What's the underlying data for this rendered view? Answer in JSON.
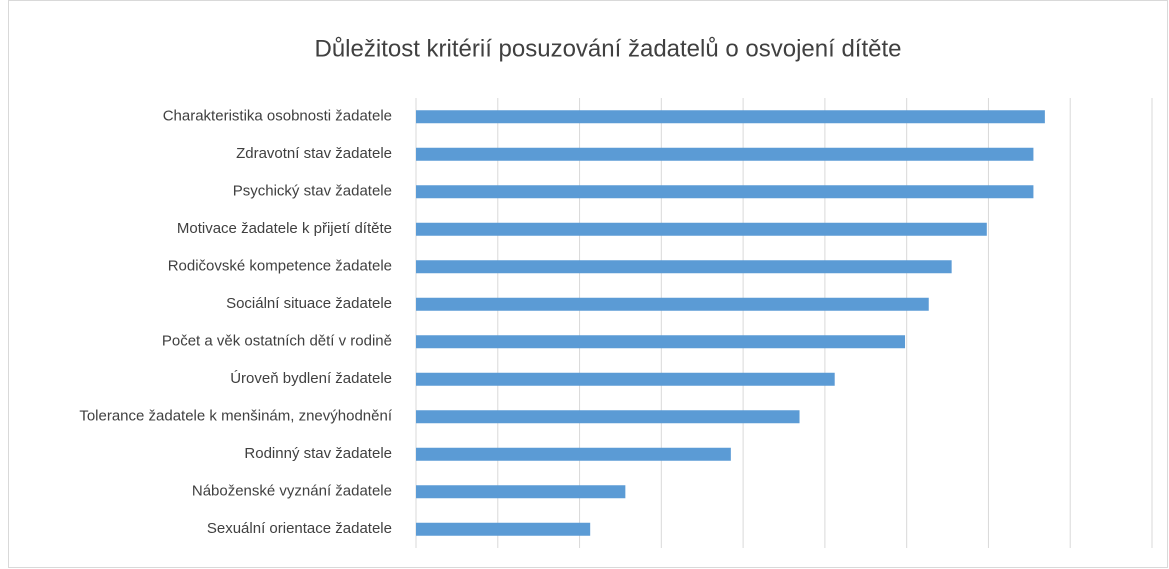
{
  "chart_data": {
    "type": "hbar",
    "title": "Důležitost kritérií posuzování žadatelů o osvojení dítěte",
    "categories": [
      "Charakteristika osobnosti žadatele",
      "Zdravotní stav žadatele",
      "Psychický stav žadatele",
      "Motivace žadatele k přijetí dítěte",
      "Rodičovské kompetence žadatele",
      "Sociální situace žadatele",
      "Počet a věk ostatních dětí v rodině",
      "Úroveň bydlení žadatele",
      "Tolerance žadatele k menšinám, znevýhodnění",
      "Rodinný stav žadatele",
      "Náboženské vyznání žadatele",
      "Sexuální orientace žadatele"
    ],
    "values": [
      7.69,
      7.55,
      7.55,
      6.98,
      6.55,
      6.27,
      5.98,
      5.12,
      4.69,
      3.85,
      2.56,
      2.13
    ],
    "color": "#5b9bd5",
    "xlim": [
      0,
      9
    ],
    "xticks": [
      0,
      1,
      2,
      3,
      4,
      5,
      6,
      7,
      8,
      9
    ],
    "grid": true
  }
}
